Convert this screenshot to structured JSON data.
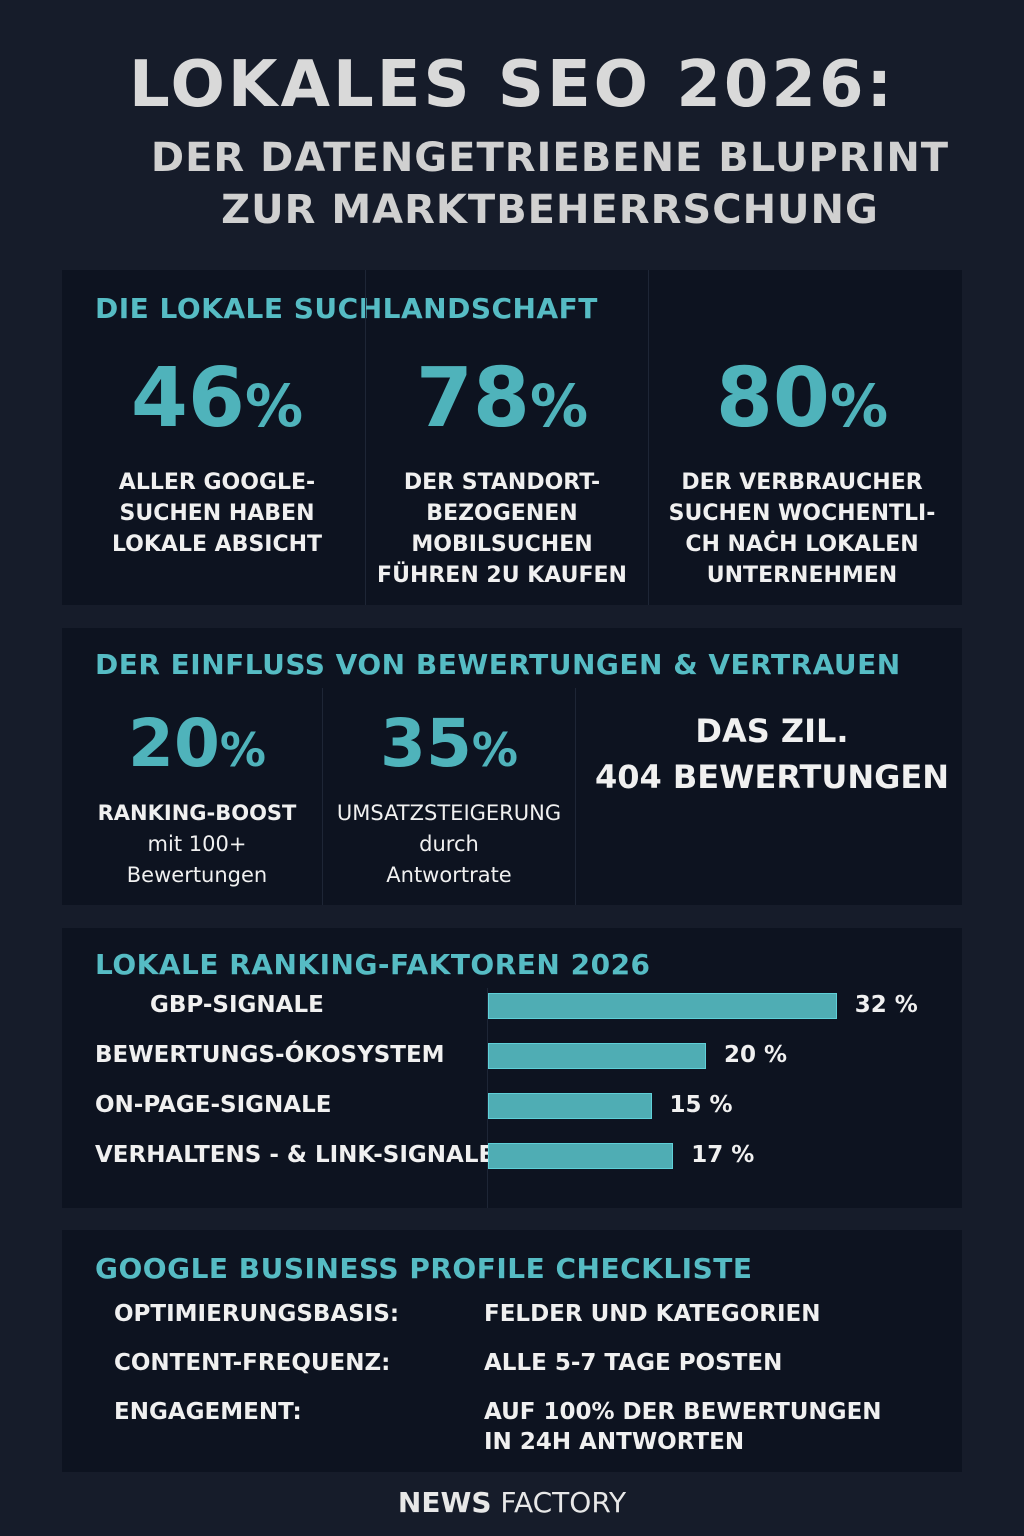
{
  "header": {
    "title": "LOKALES SEO 2026:",
    "subtitle_line1": "DER DATENGETRIEBENE BLUPRINT",
    "subtitle_line2": "ZUR MARKTBEHERRSCHUNG"
  },
  "section1": {
    "heading": "DIE LOKALE SUCHLANDSCHAFT",
    "stats": [
      {
        "value": "46",
        "unit": "%",
        "lines": [
          "ALLER GOOGLE-",
          "SUCHEN HABEN",
          "LOKALE ABSICHT"
        ]
      },
      {
        "value": "78",
        "unit": "%",
        "lines": [
          "DER STANDORT-",
          "BEZOGENEN",
          "MOBILSUCHEN",
          "FÜHREN 2U KAUFEN"
        ]
      },
      {
        "value": "80",
        "unit": "%",
        "lines": [
          "DER VERBRAUCHER",
          "SUCHEN WOCHENTLI-",
          "CH NAĊH LOKALEN",
          "UNTERNEHMEN"
        ]
      }
    ]
  },
  "section2": {
    "heading": "DER EINFLUSS VON BEWERTUNGEN & VERTRAUEN",
    "stats": [
      {
        "value": "20",
        "unit": "%",
        "lines": [
          "RANKING-BOOST",
          "mit 100+",
          "Bewertungen"
        ]
      },
      {
        "value": "35",
        "unit": "%",
        "lines": [
          "UMSATZSTEIGERUNG",
          "durch",
          "Antwortrate"
        ]
      }
    ],
    "goal_line1": "DAS ZIL.",
    "goal_line2": "404 BEWERTUNGEN"
  },
  "chart_data": {
    "type": "bar",
    "orientation": "horizontal",
    "title": "LOKALE RANKING-FAKTOREN 2026",
    "categories": [
      "GBP-SIGNALE",
      "BEWERTUNGS-ÓKOSYSTEM",
      "ON-PAGE-SIGNALE",
      "VERHALTENS - & LINK-SIGNALE"
    ],
    "values": [
      32,
      20,
      15,
      17
    ],
    "value_labels": [
      "32 %",
      "20 %",
      "15 %",
      "17 %"
    ],
    "unit": "%",
    "bar_color": "#4fadb4",
    "grid": false
  },
  "section4": {
    "heading": "GOOGLE BUSINESS PROFILE CHECKLISTE",
    "rows": [
      {
        "label": "OPTIMIERUNGSBASIS:",
        "value_lines": [
          "FELDER UND KATEGORIEN"
        ]
      },
      {
        "label": "CONTENT-FREQUENZ:",
        "value_lines": [
          "ALLE 5-7 TAGE POSTEN"
        ]
      },
      {
        "label": "ENGAGEMENT:",
        "value_lines": [
          "AUF 100% DER BEWERTUNGEN",
          "IN 24H ANTWORTEN"
        ]
      }
    ]
  },
  "footer": {
    "brand_bold": "NEWS",
    "brand_light": "FACTORY"
  },
  "colors": {
    "background": "#161c2a",
    "panel": "#0d1320",
    "accent": "#4fb3bb",
    "text": "#f0f0f0"
  }
}
